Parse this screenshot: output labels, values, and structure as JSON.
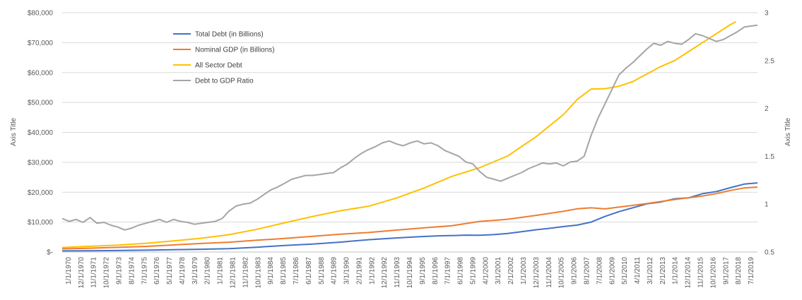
{
  "chart_data": {
    "type": "line",
    "title": "",
    "y_left_label": "Axis Title",
    "y_right_label": "Axis Title",
    "y_left_lim": [
      0,
      80000
    ],
    "y_right_lim": [
      0.5,
      3
    ],
    "y_left_ticks": [
      "$-",
      "$10,000",
      "$20,000",
      "$30,000",
      "$40,000",
      "$50,000",
      "$60,000",
      "$70,000",
      "$80,000"
    ],
    "y_right_ticks": [
      "0.5",
      "1",
      "1.5",
      "2",
      "2.5",
      "3"
    ],
    "x_tick_labels": [
      "1/1/1970",
      "12/1/1970",
      "11/1/1971",
      "10/1/1972",
      "9/1/1973",
      "8/1/1974",
      "7/1/1975",
      "6/1/1976",
      "5/1/1977",
      "4/1/1978",
      "3/1/1979",
      "2/1/1980",
      "1/1/1981",
      "12/1/1981",
      "11/1/1982",
      "10/1/1983",
      "9/1/1984",
      "8/1/1985",
      "7/1/1986",
      "6/1/1987",
      "5/1/1988",
      "4/1/1989",
      "3/1/1990",
      "2/1/1991",
      "1/1/1992",
      "12/1/1992",
      "11/1/1993",
      "10/1/1994",
      "9/1/1995",
      "8/1/1996",
      "7/1/1997",
      "6/1/1998",
      "5/1/1999",
      "4/1/2000",
      "3/1/2001",
      "2/1/2002",
      "1/1/2003",
      "12/1/2003",
      "11/1/2004",
      "10/1/2005",
      "9/1/2006",
      "8/1/2007",
      "7/1/2008",
      "6/1/2009",
      "5/1/2010",
      "4/1/2011",
      "3/1/2012",
      "2/1/2013",
      "1/1/2014",
      "12/1/2014",
      "11/1/2015",
      "10/1/2016",
      "9/1/2017",
      "8/1/2018",
      "7/1/2019"
    ],
    "x_range": [
      1970.0,
      2019.95
    ],
    "gridlines": "horizontal",
    "legend_position": "top-left",
    "colors": {
      "total_debt": "#4472c4",
      "gdp": "#ed7d31",
      "all_sector": "#ffc000",
      "ratio": "#a5a5a5"
    },
    "series": [
      {
        "name": "Total Debt (in Billions)",
        "axis": "left",
        "color": "#4472c4",
        "points": [
          [
            1970,
            380
          ],
          [
            1972,
            430
          ],
          [
            1974,
            500
          ],
          [
            1976,
            620
          ],
          [
            1978,
            780
          ],
          [
            1980,
            910
          ],
          [
            1982,
            1140
          ],
          [
            1984,
            1600
          ],
          [
            1986,
            2200
          ],
          [
            1988,
            2650
          ],
          [
            1990,
            3300
          ],
          [
            1992,
            4100
          ],
          [
            1993,
            4400
          ],
          [
            1994,
            4700
          ],
          [
            1995,
            4950
          ],
          [
            1996,
            5200
          ],
          [
            1997,
            5400
          ],
          [
            1998,
            5500
          ],
          [
            1999,
            5650
          ],
          [
            2000,
            5600
          ],
          [
            2001,
            5800
          ],
          [
            2002,
            6200
          ],
          [
            2003,
            6800
          ],
          [
            2004,
            7400
          ],
          [
            2005,
            7900
          ],
          [
            2006,
            8500
          ],
          [
            2007,
            9000
          ],
          [
            2008,
            10000
          ],
          [
            2009,
            11900
          ],
          [
            2010,
            13500
          ],
          [
            2011,
            14800
          ],
          [
            2012,
            16100
          ],
          [
            2013,
            16700
          ],
          [
            2014,
            17800
          ],
          [
            2015,
            18100
          ],
          [
            2016,
            19500
          ],
          [
            2017,
            20200
          ],
          [
            2018,
            21500
          ],
          [
            2019,
            22700
          ],
          [
            2019.95,
            23100
          ]
        ]
      },
      {
        "name": "Nominal GDP (in Billions)",
        "axis": "left",
        "color": "#ed7d31",
        "points": [
          [
            1970,
            1070
          ],
          [
            1972,
            1280
          ],
          [
            1974,
            1550
          ],
          [
            1976,
            1870
          ],
          [
            1978,
            2350
          ],
          [
            1980,
            2860
          ],
          [
            1982,
            3270
          ],
          [
            1984,
            3950
          ],
          [
            1986,
            4520
          ],
          [
            1988,
            5250
          ],
          [
            1990,
            5980
          ],
          [
            1992,
            6520
          ],
          [
            1994,
            7310
          ],
          [
            1996,
            8100
          ],
          [
            1998,
            8790
          ],
          [
            2000,
            10250
          ],
          [
            2001,
            10580
          ],
          [
            2002,
            10940
          ],
          [
            2004,
            12210
          ],
          [
            2006,
            13600
          ],
          [
            2007,
            14450
          ],
          [
            2008,
            14770
          ],
          [
            2009,
            14420
          ],
          [
            2010,
            15000
          ],
          [
            2012,
            16200
          ],
          [
            2014,
            17550
          ],
          [
            2016,
            18710
          ],
          [
            2017,
            19520
          ],
          [
            2018,
            20580
          ],
          [
            2019,
            21430
          ],
          [
            2019.95,
            21700
          ]
        ]
      },
      {
        "name": "All Sector Debt",
        "axis": "left",
        "color": "#ffc000",
        "points": [
          [
            1970,
            1500
          ],
          [
            1972,
            1900
          ],
          [
            1974,
            2300
          ],
          [
            1976,
            2900
          ],
          [
            1978,
            3700
          ],
          [
            1980,
            4600
          ],
          [
            1982,
            5800
          ],
          [
            1984,
            7600
          ],
          [
            1986,
            9800
          ],
          [
            1988,
            11900
          ],
          [
            1990,
            13800
          ],
          [
            1992,
            15300
          ],
          [
            1994,
            18000
          ],
          [
            1996,
            21400
          ],
          [
            1998,
            25300
          ],
          [
            2000,
            28200
          ],
          [
            2002,
            32100
          ],
          [
            2004,
            38400
          ],
          [
            2006,
            45900
          ],
          [
            2007,
            51000
          ],
          [
            2008,
            54500
          ],
          [
            2009,
            54600
          ],
          [
            2010,
            55400
          ],
          [
            2011,
            57000
          ],
          [
            2012,
            59500
          ],
          [
            2013,
            62000
          ],
          [
            2014,
            64000
          ],
          [
            2015,
            67000
          ],
          [
            2016,
            70000
          ],
          [
            2017,
            73000
          ],
          [
            2018,
            76000
          ],
          [
            2018.4,
            77000
          ]
        ]
      },
      {
        "name": "Debt to GDP Ratio",
        "axis": "right",
        "color": "#a5a5a5",
        "points": [
          [
            1970,
            0.85
          ],
          [
            1970.5,
            0.82
          ],
          [
            1971,
            0.84
          ],
          [
            1971.5,
            0.81
          ],
          [
            1972,
            0.86
          ],
          [
            1972.5,
            0.8
          ],
          [
            1973,
            0.81
          ],
          [
            1973.5,
            0.78
          ],
          [
            1974,
            0.76
          ],
          [
            1974.5,
            0.73
          ],
          [
            1975,
            0.75
          ],
          [
            1975.5,
            0.78
          ],
          [
            1976,
            0.8
          ],
          [
            1976.5,
            0.82
          ],
          [
            1977,
            0.84
          ],
          [
            1977.5,
            0.81
          ],
          [
            1978,
            0.84
          ],
          [
            1978.5,
            0.82
          ],
          [
            1979,
            0.81
          ],
          [
            1979.5,
            0.79
          ],
          [
            1980,
            0.8
          ],
          [
            1981,
            0.82
          ],
          [
            1981.5,
            0.85
          ],
          [
            1982,
            0.93
          ],
          [
            1982.5,
            0.98
          ],
          [
            1983,
            1.0
          ],
          [
            1983.5,
            1.01
          ],
          [
            1984,
            1.05
          ],
          [
            1984.5,
            1.1
          ],
          [
            1985,
            1.15
          ],
          [
            1985.5,
            1.18
          ],
          [
            1986,
            1.22
          ],
          [
            1986.5,
            1.26
          ],
          [
            1987,
            1.28
          ],
          [
            1987.5,
            1.3
          ],
          [
            1988,
            1.3
          ],
          [
            1988.5,
            1.31
          ],
          [
            1989,
            1.32
          ],
          [
            1989.5,
            1.33
          ],
          [
            1990,
            1.38
          ],
          [
            1990.5,
            1.42
          ],
          [
            1991,
            1.48
          ],
          [
            1991.5,
            1.53
          ],
          [
            1992,
            1.57
          ],
          [
            1992.5,
            1.6
          ],
          [
            1993,
            1.64
          ],
          [
            1993.5,
            1.66
          ],
          [
            1994,
            1.63
          ],
          [
            1994.5,
            1.61
          ],
          [
            1995,
            1.64
          ],
          [
            1995.5,
            1.66
          ],
          [
            1996,
            1.63
          ],
          [
            1996.5,
            1.64
          ],
          [
            1997,
            1.61
          ],
          [
            1997.5,
            1.56
          ],
          [
            1998,
            1.53
          ],
          [
            1998.5,
            1.5
          ],
          [
            1999,
            1.44
          ],
          [
            1999.5,
            1.42
          ],
          [
            2000,
            1.34
          ],
          [
            2000.5,
            1.28
          ],
          [
            2001,
            1.26
          ],
          [
            2001.5,
            1.24
          ],
          [
            2002,
            1.27
          ],
          [
            2002.5,
            1.3
          ],
          [
            2003,
            1.33
          ],
          [
            2003.5,
            1.37
          ],
          [
            2004,
            1.4
          ],
          [
            2004.5,
            1.43
          ],
          [
            2005,
            1.42
          ],
          [
            2005.5,
            1.43
          ],
          [
            2006,
            1.4
          ],
          [
            2006.5,
            1.44
          ],
          [
            2007,
            1.45
          ],
          [
            2007.5,
            1.5
          ],
          [
            2008,
            1.72
          ],
          [
            2008.5,
            1.9
          ],
          [
            2009,
            2.05
          ],
          [
            2009.5,
            2.2
          ],
          [
            2010,
            2.35
          ],
          [
            2010.5,
            2.42
          ],
          [
            2011,
            2.48
          ],
          [
            2011.5,
            2.55
          ],
          [
            2012,
            2.62
          ],
          [
            2012.5,
            2.68
          ],
          [
            2013,
            2.66
          ],
          [
            2013.5,
            2.7
          ],
          [
            2014,
            2.68
          ],
          [
            2014.5,
            2.67
          ],
          [
            2015,
            2.72
          ],
          [
            2015.5,
            2.78
          ],
          [
            2016,
            2.76
          ],
          [
            2016.5,
            2.73
          ],
          [
            2017,
            2.7
          ],
          [
            2017.5,
            2.72
          ],
          [
            2018,
            2.76
          ],
          [
            2018.5,
            2.8
          ],
          [
            2019,
            2.85
          ],
          [
            2019.95,
            2.87
          ]
        ]
      }
    ]
  }
}
